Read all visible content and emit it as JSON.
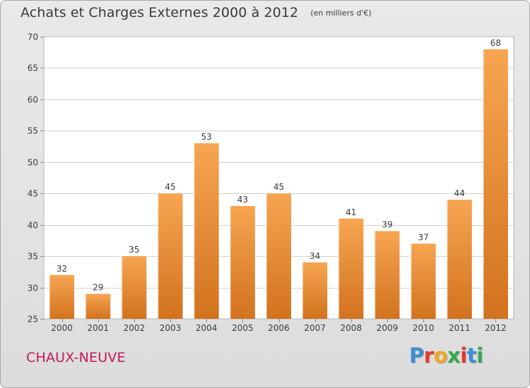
{
  "header": {
    "title": "Achats et Charges Externes 2000 à 2012",
    "unit": "(en milliers d'€)"
  },
  "footer": {
    "commune": "CHAUX-NEUVE",
    "logo_text": "Proxiti"
  },
  "colors": {
    "bar_light": "#f7a552",
    "bar_dark": "#d2721e",
    "logo": [
      "#3b8fd6",
      "#e5392b",
      "#f2a81d",
      "#36a852",
      "#e5392b",
      "#3b8fd6",
      "#36a852"
    ]
  },
  "chart_data": {
    "type": "bar",
    "categories": [
      "2000",
      "2001",
      "2002",
      "2003",
      "2004",
      "2005",
      "2006",
      "2007",
      "2008",
      "2009",
      "2010",
      "2011",
      "2012"
    ],
    "values": [
      32,
      29,
      35,
      45,
      53,
      43,
      45,
      34,
      41,
      39,
      37,
      44,
      68
    ],
    "ylim": [
      25,
      70
    ],
    "yticks": [
      25,
      30,
      35,
      40,
      45,
      50,
      55,
      60,
      65,
      70
    ],
    "grid": true,
    "data_labels": true
  }
}
